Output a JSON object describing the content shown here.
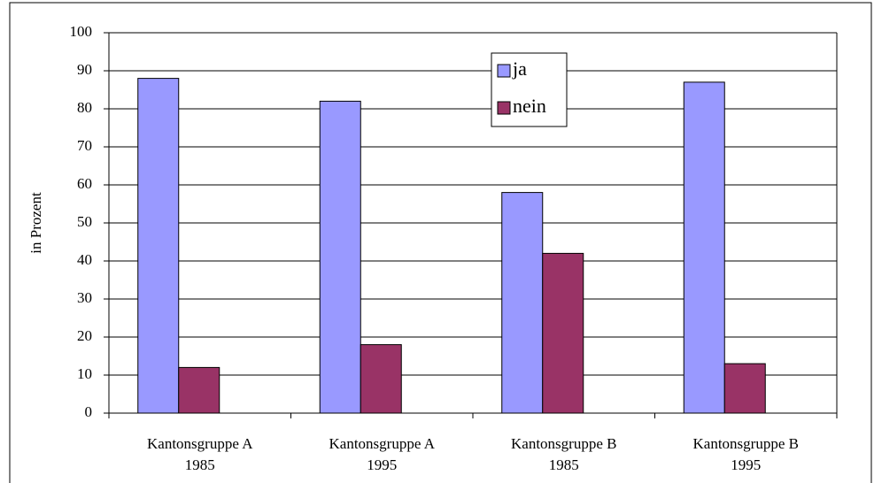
{
  "chart_data": {
    "type": "bar",
    "categories": [
      "Kantonsgruppe A\n1985",
      "Kantonsgruppe A\n1995",
      "Kantonsgruppe B\n1985",
      "Kantonsgruppe B\n1995"
    ],
    "series": [
      {
        "name": "ja",
        "color": "#9999ff",
        "values": [
          88,
          82,
          58,
          87
        ]
      },
      {
        "name": "nein",
        "color": "#993366",
        "values": [
          12,
          18,
          42,
          13
        ]
      }
    ],
    "y_label": "in Prozent",
    "ylim": [
      0,
      100
    ],
    "yticks": [
      0,
      10,
      20,
      30,
      40,
      50,
      60,
      70,
      80,
      90,
      100
    ],
    "grid": true,
    "legend": "top-right"
  }
}
